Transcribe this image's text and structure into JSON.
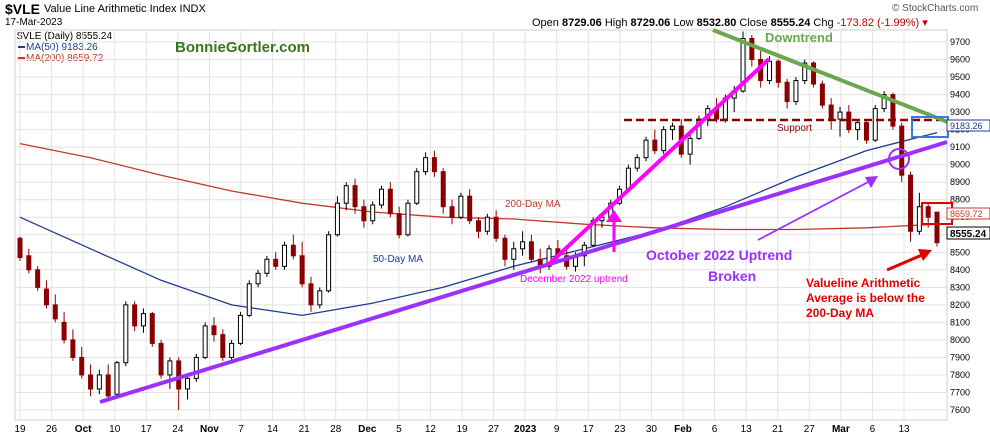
{
  "header": {
    "ticker": "$VLE",
    "name": "Value Line Arithmetic Index INDX",
    "date": "17-Mar-2023",
    "watermark": "© StockCharts.com",
    "ohlc": {
      "open_label": "Open",
      "open": "8729.06",
      "high_label": "High",
      "high": "8729.06",
      "low_label": "Low",
      "low": "8532.80",
      "close_label": "Close",
      "close": "8555.24",
      "chg_label": "Chg",
      "chg": "-173.82 (-1.99%)"
    }
  },
  "legend": {
    "series": "$VLE (Daily) 8555.24",
    "ma50": "MA(50) 9183.26",
    "ma200": "MA(200) 8659.72",
    "site": "BonnieGortler.com"
  },
  "annotations": {
    "downtrend": "Downtrend",
    "support": "Support",
    "ma200_label": "200-Day MA",
    "ma50_label": "50-Day MA",
    "dec_uptrend": "December 2022 uptrend",
    "oct_uptrend_1": "October 2022 Uptrend",
    "oct_uptrend_2": "Broken",
    "note_1": "Valueline Arithmetic",
    "note_2": "Average is below the",
    "note_3": "200-Day MA"
  },
  "price_tags": {
    "ma50": "9183.26",
    "ma200": "8659.72",
    "close": "8555.24"
  },
  "colors": {
    "candle": "#000000",
    "ma50": "#1f3a93",
    "ma200": "#c0392b",
    "trend_purple": "#9b30ff",
    "trend_magenta": "#ff00ff",
    "downtrend_green": "#6aa84f",
    "support": "#8b0000",
    "note_red": "#e00000",
    "site_green": "#38761d",
    "grid": "#e3e3e3"
  },
  "chart_data": {
    "type": "candlestick",
    "y_axis": {
      "ticks": [
        7600,
        7700,
        7800,
        7900,
        8000,
        8100,
        8200,
        8300,
        8400,
        8500,
        8600,
        8700,
        8800,
        8900,
        9000,
        9100,
        9200,
        9300,
        9400,
        9500,
        9600,
        9700
      ],
      "range": [
        7550,
        9800
      ]
    },
    "x_axis": {
      "tick_labels": [
        "19",
        "26",
        "Oct",
        "10",
        "17",
        "24",
        "Nov",
        "7",
        "14",
        "21",
        "28",
        "Dec",
        "5",
        "12",
        "19",
        "27",
        "2023",
        "9",
        "17",
        "23",
        "30",
        "Feb",
        "6",
        "13",
        "21",
        "27",
        "Mar",
        "6",
        "13"
      ]
    },
    "grid": true,
    "candles": [
      {
        "o": 8580,
        "h": 8590,
        "l": 8450,
        "c": 8470
      },
      {
        "o": 8480,
        "h": 8520,
        "l": 8380,
        "c": 8400
      },
      {
        "o": 8400,
        "h": 8420,
        "l": 8280,
        "c": 8300
      },
      {
        "o": 8290,
        "h": 8340,
        "l": 8180,
        "c": 8200
      },
      {
        "o": 8200,
        "h": 8260,
        "l": 8100,
        "c": 8120
      },
      {
        "o": 8100,
        "h": 8160,
        "l": 7980,
        "c": 8000
      },
      {
        "o": 8000,
        "h": 8060,
        "l": 7880,
        "c": 7900
      },
      {
        "o": 7900,
        "h": 7960,
        "l": 7780,
        "c": 7800
      },
      {
        "o": 7800,
        "h": 7860,
        "l": 7680,
        "c": 7720
      },
      {
        "o": 7720,
        "h": 7830,
        "l": 7690,
        "c": 7800
      },
      {
        "o": 7800,
        "h": 7860,
        "l": 7650,
        "c": 7680
      },
      {
        "o": 7690,
        "h": 7880,
        "l": 7680,
        "c": 7870
      },
      {
        "o": 7870,
        "h": 8220,
        "l": 7850,
        "c": 8200
      },
      {
        "o": 8200,
        "h": 8220,
        "l": 8050,
        "c": 8080
      },
      {
        "o": 8080,
        "h": 8180,
        "l": 8040,
        "c": 8150
      },
      {
        "o": 8150,
        "h": 8160,
        "l": 7960,
        "c": 7980
      },
      {
        "o": 7980,
        "h": 8000,
        "l": 7780,
        "c": 7800
      },
      {
        "o": 7800,
        "h": 7900,
        "l": 7720,
        "c": 7880
      },
      {
        "o": 7880,
        "h": 7900,
        "l": 7600,
        "c": 7720
      },
      {
        "o": 7720,
        "h": 7800,
        "l": 7660,
        "c": 7780
      },
      {
        "o": 7780,
        "h": 7920,
        "l": 7760,
        "c": 7900
      },
      {
        "o": 7900,
        "h": 8100,
        "l": 7890,
        "c": 8080
      },
      {
        "o": 8080,
        "h": 8130,
        "l": 7990,
        "c": 8030
      },
      {
        "o": 8030,
        "h": 8060,
        "l": 7880,
        "c": 7900
      },
      {
        "o": 7900,
        "h": 8000,
        "l": 7880,
        "c": 7980
      },
      {
        "o": 7980,
        "h": 8160,
        "l": 7970,
        "c": 8140
      },
      {
        "o": 8140,
        "h": 8340,
        "l": 8130,
        "c": 8320
      },
      {
        "o": 8320,
        "h": 8400,
        "l": 8300,
        "c": 8380
      },
      {
        "o": 8380,
        "h": 8480,
        "l": 8360,
        "c": 8460
      },
      {
        "o": 8460,
        "h": 8500,
        "l": 8400,
        "c": 8420
      },
      {
        "o": 8420,
        "h": 8560,
        "l": 8400,
        "c": 8540
      },
      {
        "o": 8540,
        "h": 8600,
        "l": 8460,
        "c": 8480
      },
      {
        "o": 8480,
        "h": 8560,
        "l": 8300,
        "c": 8320
      },
      {
        "o": 8320,
        "h": 8360,
        "l": 8160,
        "c": 8200
      },
      {
        "o": 8200,
        "h": 8300,
        "l": 8180,
        "c": 8280
      },
      {
        "o": 8280,
        "h": 8620,
        "l": 8270,
        "c": 8600
      },
      {
        "o": 8600,
        "h": 8820,
        "l": 8590,
        "c": 8780
      },
      {
        "o": 8780,
        "h": 8900,
        "l": 8740,
        "c": 8880
      },
      {
        "o": 8880,
        "h": 8920,
        "l": 8720,
        "c": 8760
      },
      {
        "o": 8760,
        "h": 8800,
        "l": 8640,
        "c": 8680
      },
      {
        "o": 8680,
        "h": 8790,
        "l": 8660,
        "c": 8770
      },
      {
        "o": 8770,
        "h": 8880,
        "l": 8750,
        "c": 8860
      },
      {
        "o": 8860,
        "h": 8900,
        "l": 8700,
        "c": 8720
      },
      {
        "o": 8720,
        "h": 8760,
        "l": 8580,
        "c": 8600
      },
      {
        "o": 8600,
        "h": 8800,
        "l": 8590,
        "c": 8780
      },
      {
        "o": 8780,
        "h": 8980,
        "l": 8770,
        "c": 8960
      },
      {
        "o": 8960,
        "h": 9070,
        "l": 8940,
        "c": 9040
      },
      {
        "o": 9040,
        "h": 9080,
        "l": 8930,
        "c": 8960
      },
      {
        "o": 8960,
        "h": 8980,
        "l": 8720,
        "c": 8760
      },
      {
        "o": 8760,
        "h": 8800,
        "l": 8660,
        "c": 8700
      },
      {
        "o": 8700,
        "h": 8840,
        "l": 8690,
        "c": 8820
      },
      {
        "o": 8820,
        "h": 8860,
        "l": 8660,
        "c": 8680
      },
      {
        "o": 8680,
        "h": 8700,
        "l": 8580,
        "c": 8620
      },
      {
        "o": 8620,
        "h": 8720,
        "l": 8600,
        "c": 8700
      },
      {
        "o": 8700,
        "h": 8740,
        "l": 8560,
        "c": 8580
      },
      {
        "o": 8580,
        "h": 8600,
        "l": 8420,
        "c": 8460
      },
      {
        "o": 8460,
        "h": 8560,
        "l": 8400,
        "c": 8520
      },
      {
        "o": 8520,
        "h": 8620,
        "l": 8480,
        "c": 8560
      },
      {
        "o": 8560,
        "h": 8600,
        "l": 8440,
        "c": 8460
      },
      {
        "o": 8460,
        "h": 8520,
        "l": 8380,
        "c": 8420
      },
      {
        "o": 8420,
        "h": 8540,
        "l": 8400,
        "c": 8520
      },
      {
        "o": 8520,
        "h": 8570,
        "l": 8460,
        "c": 8480
      },
      {
        "o": 8480,
        "h": 8530,
        "l": 8400,
        "c": 8420
      },
      {
        "o": 8420,
        "h": 8500,
        "l": 8390,
        "c": 8480
      },
      {
        "o": 8480,
        "h": 8560,
        "l": 8420,
        "c": 8540
      },
      {
        "o": 8540,
        "h": 8700,
        "l": 8530,
        "c": 8680
      },
      {
        "o": 8680,
        "h": 8720,
        "l": 8640,
        "c": 8700
      },
      {
        "o": 8700,
        "h": 8800,
        "l": 8690,
        "c": 8780
      },
      {
        "o": 8780,
        "h": 8880,
        "l": 8770,
        "c": 8860
      },
      {
        "o": 8860,
        "h": 9000,
        "l": 8850,
        "c": 8980
      },
      {
        "o": 8980,
        "h": 9060,
        "l": 8960,
        "c": 9040
      },
      {
        "o": 9040,
        "h": 9160,
        "l": 9020,
        "c": 9140
      },
      {
        "o": 9140,
        "h": 9200,
        "l": 9060,
        "c": 9080
      },
      {
        "o": 9080,
        "h": 9220,
        "l": 9060,
        "c": 9200
      },
      {
        "o": 9200,
        "h": 9240,
        "l": 9140,
        "c": 9220
      },
      {
        "o": 9220,
        "h": 9260,
        "l": 9040,
        "c": 9060
      },
      {
        "o": 9060,
        "h": 9180,
        "l": 9000,
        "c": 9150
      },
      {
        "o": 9150,
        "h": 9280,
        "l": 9140,
        "c": 9260
      },
      {
        "o": 9260,
        "h": 9340,
        "l": 9220,
        "c": 9320
      },
      {
        "o": 9320,
        "h": 9380,
        "l": 9240,
        "c": 9260
      },
      {
        "o": 9260,
        "h": 9400,
        "l": 9240,
        "c": 9380
      },
      {
        "o": 9380,
        "h": 9450,
        "l": 9300,
        "c": 9420
      },
      {
        "o": 9420,
        "h": 9760,
        "l": 9410,
        "c": 9720
      },
      {
        "o": 9720,
        "h": 9740,
        "l": 9560,
        "c": 9600
      },
      {
        "o": 9600,
        "h": 9650,
        "l": 9440,
        "c": 9480
      },
      {
        "o": 9480,
        "h": 9620,
        "l": 9460,
        "c": 9590
      },
      {
        "o": 9590,
        "h": 9600,
        "l": 9440,
        "c": 9470
      },
      {
        "o": 9470,
        "h": 9490,
        "l": 9320,
        "c": 9360
      },
      {
        "o": 9360,
        "h": 9500,
        "l": 9340,
        "c": 9480
      },
      {
        "o": 9480,
        "h": 9600,
        "l": 9460,
        "c": 9580
      },
      {
        "o": 9580,
        "h": 9590,
        "l": 9440,
        "c": 9460
      },
      {
        "o": 9460,
        "h": 9480,
        "l": 9320,
        "c": 9340
      },
      {
        "o": 9340,
        "h": 9380,
        "l": 9200,
        "c": 9260
      },
      {
        "o": 9260,
        "h": 9330,
        "l": 9160,
        "c": 9300
      },
      {
        "o": 9300,
        "h": 9340,
        "l": 9180,
        "c": 9200
      },
      {
        "o": 9200,
        "h": 9260,
        "l": 9140,
        "c": 9240
      },
      {
        "o": 9240,
        "h": 9260,
        "l": 9120,
        "c": 9140
      },
      {
        "o": 9140,
        "h": 9340,
        "l": 9130,
        "c": 9320
      },
      {
        "o": 9320,
        "h": 9420,
        "l": 9300,
        "c": 9400
      },
      {
        "o": 9400,
        "h": 9410,
        "l": 9200,
        "c": 9220
      },
      {
        "o": 9220,
        "h": 9240,
        "l": 8900,
        "c": 8940
      },
      {
        "o": 8940,
        "h": 8960,
        "l": 8560,
        "c": 8620
      },
      {
        "o": 8620,
        "h": 8840,
        "l": 8600,
        "c": 8760
      },
      {
        "o": 8760,
        "h": 8780,
        "l": 8640,
        "c": 8700
      },
      {
        "o": 8729,
        "h": 8729,
        "l": 8533,
        "c": 8555
      }
    ],
    "ma50": [
      8700,
      8520,
      8340,
      8200,
      8140,
      8210,
      8300,
      8420,
      8520,
      8620,
      8760,
      8930,
      9080,
      9183
    ],
    "ma200": [
      9120,
      9040,
      8940,
      8850,
      8780,
      8730,
      8700,
      8690,
      8660,
      8640,
      8630,
      8630,
      8640,
      8660
    ],
    "support_level": 9230
  }
}
